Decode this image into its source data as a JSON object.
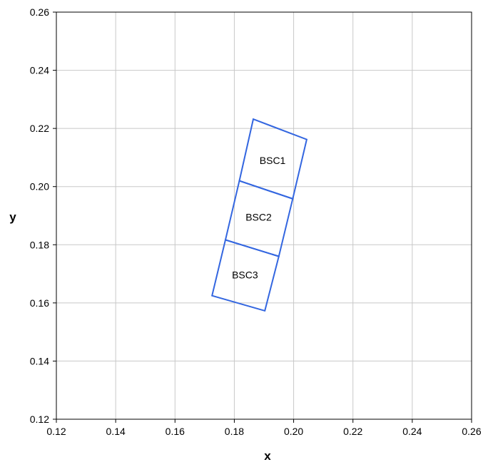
{
  "chart_data": {
    "type": "polygon",
    "title": "",
    "xlabel": "x",
    "ylabel": "y",
    "xlim": [
      0.12,
      0.26
    ],
    "ylim": [
      0.12,
      0.26
    ],
    "xticks": [
      0.12,
      0.14,
      0.16,
      0.18,
      0.2,
      0.22,
      0.24,
      0.26
    ],
    "yticks": [
      0.12,
      0.14,
      0.16,
      0.18,
      0.2,
      0.22,
      0.24,
      0.26
    ],
    "xtick_labels": [
      "0.12",
      "0.14",
      "0.16",
      "0.18",
      "0.20",
      "0.22",
      "0.24",
      "0.26"
    ],
    "ytick_labels": [
      "0.12",
      "0.14",
      "0.16",
      "0.18",
      "0.20",
      "0.22",
      "0.24",
      "0.26"
    ],
    "grid": true,
    "legend": "none",
    "line_color": "#3366e0",
    "regions": [
      {
        "name": "BSC1",
        "vertices": [
          [
            0.1864,
            0.2232
          ],
          [
            0.2044,
            0.2162
          ],
          [
            0.1997,
            0.1958
          ],
          [
            0.1817,
            0.202
          ]
        ],
        "label_at": [
          0.1929,
          0.209
        ]
      },
      {
        "name": "BSC2",
        "vertices": [
          [
            0.1817,
            0.202
          ],
          [
            0.1997,
            0.1958
          ],
          [
            0.195,
            0.176
          ],
          [
            0.177,
            0.1817
          ]
        ],
        "label_at": [
          0.1882,
          0.1895
        ]
      },
      {
        "name": "BSC3",
        "vertices": [
          [
            0.177,
            0.1817
          ],
          [
            0.195,
            0.176
          ],
          [
            0.1903,
            0.1573
          ],
          [
            0.1725,
            0.1625
          ]
        ],
        "label_at": [
          0.1836,
          0.1697
        ]
      }
    ]
  }
}
